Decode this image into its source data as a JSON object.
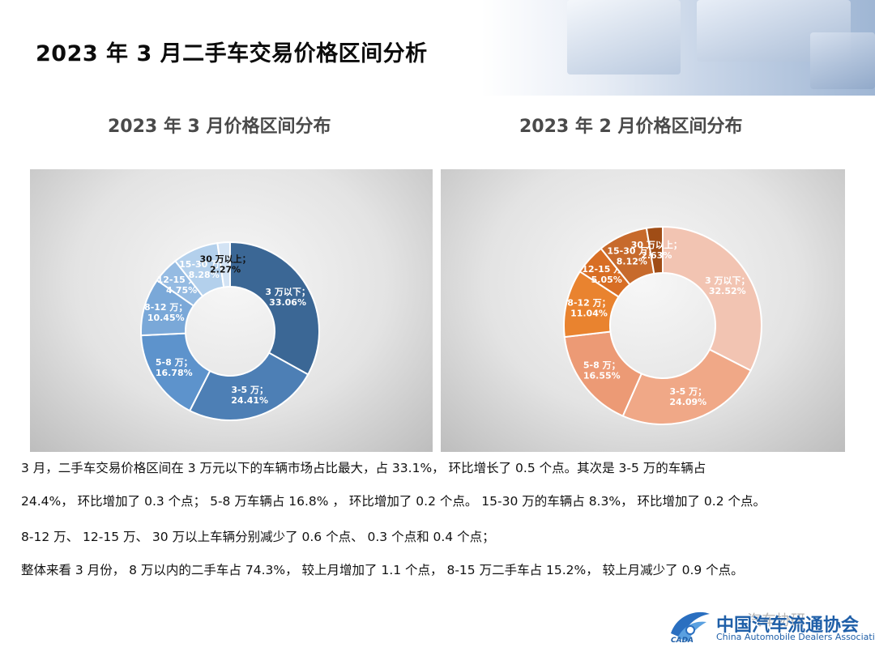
{
  "header": {
    "title": "2023 年 3 月二手车交易价格区间分析"
  },
  "chart_data": [
    {
      "type": "pie",
      "title": "2023 年 3 月价格区间分布",
      "donut": true,
      "categories": [
        "3 万以下",
        "3-5 万",
        "5-8 万",
        "8-12 万",
        "12-15 万",
        "15-30 万",
        "30 万以上"
      ],
      "values": [
        33.06,
        24.41,
        16.78,
        10.45,
        4.75,
        8.28,
        2.27
      ],
      "labels": [
        "3 万以下；33.06%",
        "3-5 万；24.41%",
        "5-8 万；16.78%",
        "8-12 万；10.45%",
        "12-15 万；4.75%",
        "15-30 万；8.28%",
        "30 万以上；2.27%"
      ],
      "colors": [
        "#3b6795",
        "#4d7fb5",
        "#5d93cc",
        "#7aa8d8",
        "#95bbe2",
        "#b3d0ec",
        "#d3e3f4"
      ]
    },
    {
      "type": "pie",
      "title": "2023 年 2 月价格区间分布",
      "donut": true,
      "categories": [
        "3 万以下",
        "3-5 万",
        "5-8 万",
        "8-12 万",
        "12-15 万",
        "15-30 万",
        "30 万以上"
      ],
      "values": [
        32.52,
        24.09,
        16.55,
        11.04,
        5.05,
        8.12,
        2.63
      ],
      "labels": [
        "3 万以下；32.52%",
        "3-5 万；24.09%",
        "5-8 万；16.55%",
        "8-12 万；11.04%",
        "12-15 万；5.05%",
        "15-30 万；8.12%",
        "30 万以上；2.63%"
      ],
      "colors": [
        "#f2c4b2",
        "#f0a887",
        "#ec9a75",
        "#e9832f",
        "#d86e24",
        "#c76a2c",
        "#a04d16"
      ]
    }
  ],
  "body": {
    "p1": "3 月，二手车交易价格区间在 3 万元以下的车辆市场占比最大，占 33.1%， 环比增长了 0.5 个点。其次是 3-5 万的车辆占",
    "p2": "24.4%， 环比增加了 0.3 个点； 5-8 万车辆占 16.8% ， 环比增加了 0.2 个点。 15-30 万的车辆占 8.3%， 环比增加了 0.2 个点。",
    "p3": "8-12 万、 12-15 万、 30 万以上车辆分别减少了 0.6 个点、 0.3 个点和 0.4 个点；",
    "p4": "整体来看 3 月份， 8 万以内的二手车占 74.3%， 较上月增加了 1.1 个点， 8-15 万二手车占 15.2%， 较上月减少了 0.9 个点。"
  },
  "logo": {
    "name_cn": "中国汽车流通协会",
    "name_en": "China Automobile Dealers Association",
    "abbr": "CADA"
  },
  "watermark": "汽车协研"
}
